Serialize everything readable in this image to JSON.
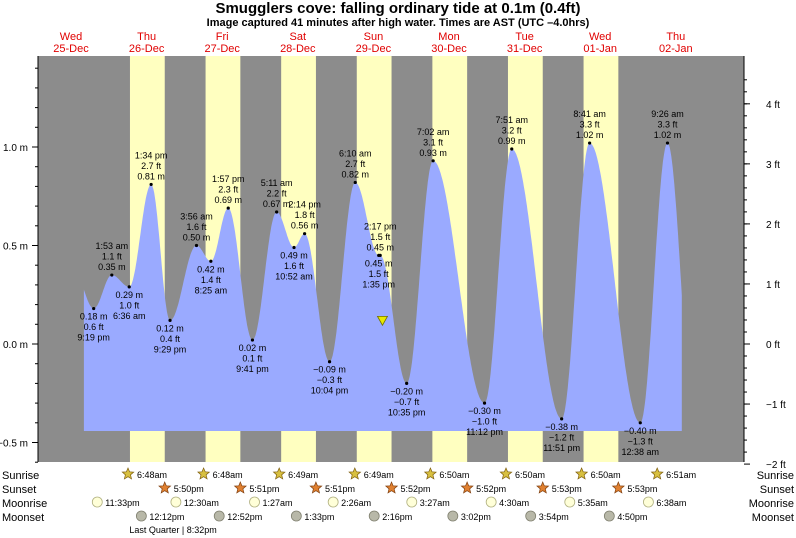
{
  "header": {
    "title": "Smugglers cove: falling  ordinary tide at 0.1m (0.4ft)",
    "subtitle": "Image captured 41 minutes after high water. Times are AST (UTC –4.0hrs)"
  },
  "chart_data": {
    "type": "area",
    "days": [
      {
        "dow": "Wed",
        "date": "25-Dec"
      },
      {
        "dow": "Thu",
        "date": "26-Dec"
      },
      {
        "dow": "Fri",
        "date": "27-Dec"
      },
      {
        "dow": "Sat",
        "date": "28-Dec"
      },
      {
        "dow": "Sun",
        "date": "29-Dec"
      },
      {
        "dow": "Mon",
        "date": "30-Dec"
      },
      {
        "dow": "Tue",
        "date": "31-Dec"
      },
      {
        "dow": "Wed",
        "date": "01-Jan"
      },
      {
        "dow": "Thu",
        "date": "02-Jan"
      }
    ],
    "y_left": {
      "unit": "m",
      "ticks": [
        "1.0 m",
        "0.5 m",
        "0.0 m",
        "−0.5 m"
      ],
      "values": [
        1.0,
        0.5,
        0.0,
        -0.5
      ]
    },
    "y_right": {
      "unit": "ft",
      "ticks": [
        "4 ft",
        "3 ft",
        "2 ft",
        "1 ft",
        "0 ft",
        "−1 ft",
        "−2 ft"
      ],
      "values": [
        4,
        3,
        2,
        1,
        0,
        -1,
        -2
      ]
    },
    "ylim_m": [
      -0.61,
      1.5
    ],
    "tides": [
      {
        "type": "low",
        "day": 0.8,
        "h": 0.18,
        "lines": [
          "0.18 m",
          "0.6 ft",
          "9:19 pm"
        ]
      },
      {
        "type": "high",
        "day": 1.04,
        "h": 0.35,
        "lines": [
          "1:53 am",
          "1.1 ft",
          "0.35 m"
        ]
      },
      {
        "type": "low",
        "day": 1.27,
        "h": 0.29,
        "lines": [
          "0.29 m",
          "1.0 ft",
          "6:36 am"
        ]
      },
      {
        "type": "high",
        "day": 1.56,
        "h": 0.81,
        "lines": [
          "1:34 pm",
          "2.7 ft",
          "0.81 m"
        ]
      },
      {
        "type": "low",
        "day": 1.81,
        "h": 0.12,
        "lines": [
          "0.12 m",
          "0.4 ft",
          "9:29 pm"
        ]
      },
      {
        "type": "high",
        "day": 2.16,
        "h": 0.5,
        "lines": [
          "3:56 am",
          "1.6 ft",
          "0.50 m"
        ]
      },
      {
        "type": "low",
        "day": 2.35,
        "h": 0.42,
        "lines": [
          "0.42 m",
          "1.4 ft",
          "8:25 am"
        ]
      },
      {
        "type": "high",
        "day": 2.58,
        "h": 0.69,
        "lines": [
          "1:57 pm",
          "2.3 ft",
          "0.69 m"
        ]
      },
      {
        "type": "low",
        "day": 2.9,
        "h": 0.02,
        "lines": [
          "0.02 m",
          "0.1 ft",
          "9:41 pm"
        ]
      },
      {
        "type": "high",
        "day": 3.22,
        "h": 0.67,
        "lines": [
          "5:11 am",
          "2.2 ft",
          "0.67 m"
        ]
      },
      {
        "type": "low",
        "day": 3.45,
        "h": 0.49,
        "lines": [
          "0.49 m",
          "1.6 ft",
          "10:52 am"
        ]
      },
      {
        "type": "high",
        "day": 3.59,
        "h": 0.56,
        "lines": [
          "2:14 pm",
          "1.8 ft",
          "0.56 m"
        ]
      },
      {
        "type": "low",
        "day": 3.92,
        "h": -0.09,
        "lines": [
          "−0.09 m",
          "−0.3 ft",
          "10:04 pm"
        ]
      },
      {
        "type": "high",
        "day": 4.26,
        "h": 0.82,
        "lines": [
          "6:10 am",
          "2.7 ft",
          "0.82 m"
        ]
      },
      {
        "type": "high",
        "day": 4.59,
        "h": 0.45,
        "lines": [
          "2:17 pm",
          "1.5 ft",
          "0.45 m"
        ]
      },
      {
        "type": "low",
        "day": 4.57,
        "h": 0.45,
        "lines": [
          "0.45 m",
          "1.5 ft",
          "1:35 pm"
        ]
      },
      {
        "type": "low",
        "day": 4.94,
        "h": -0.2,
        "lines": [
          "−0.20 m",
          "−0.7 ft",
          "10:35 pm"
        ]
      },
      {
        "type": "high",
        "day": 5.29,
        "h": 0.93,
        "lines": [
          "7:02 am",
          "3.1 ft",
          "0.93 m"
        ]
      },
      {
        "type": "low",
        "day": 5.97,
        "h": -0.3,
        "lines": [
          "−0.30 m",
          "−1.0 ft",
          "11:12 pm"
        ]
      },
      {
        "type": "high",
        "day": 6.33,
        "h": 0.99,
        "lines": [
          "7:51 am",
          "3.2 ft",
          "0.99 m"
        ]
      },
      {
        "type": "low",
        "day": 6.99,
        "h": -0.38,
        "lines": [
          "−0.38 m",
          "−1.2 ft",
          "11:51 pm"
        ]
      },
      {
        "type": "high",
        "day": 7.36,
        "h": 1.02,
        "lines": [
          "8:41 am",
          "3.3 ft",
          "1.02 m"
        ]
      },
      {
        "type": "low",
        "day": 8.03,
        "h": -0.4,
        "lines": [
          "−0.40 m",
          "−1.3 ft",
          "12:38 am"
        ]
      },
      {
        "type": "high",
        "day": 8.39,
        "h": 1.02,
        "lines": [
          "9:26 am",
          "3.3 ft",
          "1.02 m"
        ]
      }
    ],
    "current": {
      "day": 4.62,
      "h": 0.12
    },
    "daylight": [
      {
        "sunrise_day": 1.28,
        "sunset_day": 1.74
      },
      {
        "sunrise_day": 2.28,
        "sunset_day": 2.74
      },
      {
        "sunrise_day": 3.28,
        "sunset_day": 3.74
      },
      {
        "sunrise_day": 4.28,
        "sunset_day": 4.74
      },
      {
        "sunrise_day": 5.28,
        "sunset_day": 5.74
      },
      {
        "sunrise_day": 6.28,
        "sunset_day": 6.74
      },
      {
        "sunrise_day": 7.28,
        "sunset_day": 7.74
      }
    ],
    "row_labels": {
      "sunrise": "Sunrise",
      "sunset": "Sunset",
      "moonrise": "Moonrise",
      "moonset": "Moonset"
    },
    "sunrise": [
      {
        "day": 1.28,
        "time": "6:48am"
      },
      {
        "day": 2.28,
        "time": "6:48am"
      },
      {
        "day": 3.28,
        "time": "6:49am"
      },
      {
        "day": 4.28,
        "time": "6:49am"
      },
      {
        "day": 5.28,
        "time": "6:50am"
      },
      {
        "day": 6.28,
        "time": "6:50am"
      },
      {
        "day": 7.28,
        "time": "6:50am"
      },
      {
        "day": 8.28,
        "time": "6:51am"
      }
    ],
    "sunset": [
      {
        "day": 1.74,
        "time": "5:50pm"
      },
      {
        "day": 2.74,
        "time": "5:51pm"
      },
      {
        "day": 3.74,
        "time": "5:51pm"
      },
      {
        "day": 4.74,
        "time": "5:52pm"
      },
      {
        "day": 5.74,
        "time": "5:52pm"
      },
      {
        "day": 6.74,
        "time": "5:53pm"
      },
      {
        "day": 7.74,
        "time": "5:53pm"
      }
    ],
    "moonrise": [
      {
        "day": 0.98,
        "time": "11:33pm"
      },
      {
        "day": 2.02,
        "time": "12:30am"
      },
      {
        "day": 3.06,
        "time": "1:27am"
      },
      {
        "day": 4.1,
        "time": "2:26am"
      },
      {
        "day": 5.14,
        "time": "3:27am"
      },
      {
        "day": 6.19,
        "time": "4:30am"
      },
      {
        "day": 7.23,
        "time": "5:35am"
      },
      {
        "day": 8.27,
        "time": "6:38am"
      }
    ],
    "moonset": [
      {
        "day": 1.51,
        "time": "12:12pm"
      },
      {
        "day": 2.54,
        "time": "12:52pm"
      },
      {
        "day": 3.56,
        "time": "1:33pm"
      },
      {
        "day": 4.59,
        "time": "2:16pm"
      },
      {
        "day": 5.63,
        "time": "3:02pm"
      },
      {
        "day": 6.66,
        "time": "3:54pm"
      },
      {
        "day": 7.7,
        "time": "4:50pm"
      }
    ],
    "moon_phase": {
      "day": 1.85,
      "text": "Last Quarter | 8:32pm"
    }
  }
}
